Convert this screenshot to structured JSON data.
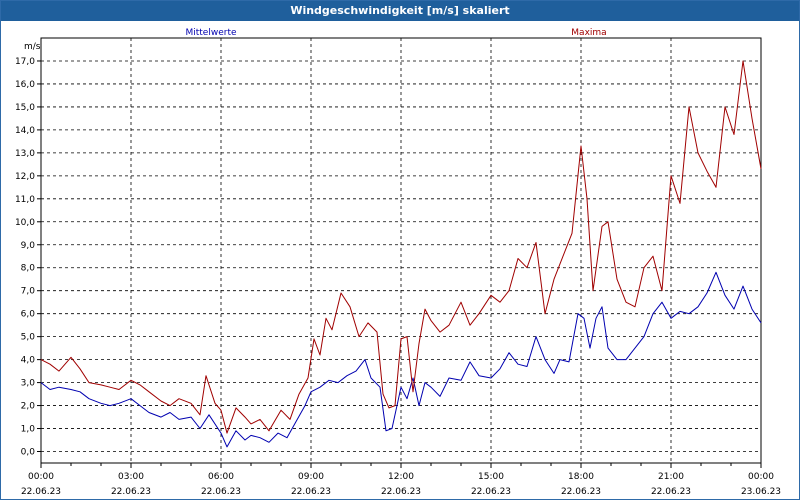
{
  "window": {
    "title": "Windgeschwindigkeit [m/s] skaliert"
  },
  "chart_data": {
    "type": "line",
    "ylabel": "m/s",
    "ylim": [
      -0.5,
      18.0
    ],
    "yticks": [
      "0,0",
      "1,0",
      "2,0",
      "3,0",
      "4,0",
      "5,0",
      "6,0",
      "7,0",
      "8,0",
      "9,0",
      "10,0",
      "11,0",
      "12,0",
      "13,0",
      "14,0",
      "15,0",
      "16,0",
      "17,0"
    ],
    "xlim": [
      0,
      24
    ],
    "xticks": [
      {
        "time": "00:00",
        "date": "22.06.23"
      },
      {
        "time": "03:00",
        "date": "22.06.23"
      },
      {
        "time": "06:00",
        "date": "22.06.23"
      },
      {
        "time": "09:00",
        "date": "22.06.23"
      },
      {
        "time": "12:00",
        "date": "22.06.23"
      },
      {
        "time": "15:00",
        "date": "22.06.23"
      },
      {
        "time": "18:00",
        "date": "22.06.23"
      },
      {
        "time": "21:00",
        "date": "22.06.23"
      },
      {
        "time": "00:00",
        "date": "23.06.23"
      }
    ],
    "grid": true,
    "series": [
      {
        "name": "Mittelwerte",
        "color": "#0000b0",
        "points": [
          [
            0.0,
            3.0
          ],
          [
            0.3,
            2.7
          ],
          [
            0.6,
            2.8
          ],
          [
            1.0,
            2.7
          ],
          [
            1.3,
            2.6
          ],
          [
            1.6,
            2.3
          ],
          [
            2.0,
            2.1
          ],
          [
            2.3,
            2.0
          ],
          [
            2.6,
            2.1
          ],
          [
            3.0,
            2.3
          ],
          [
            3.3,
            2.0
          ],
          [
            3.6,
            1.7
          ],
          [
            4.0,
            1.5
          ],
          [
            4.3,
            1.7
          ],
          [
            4.6,
            1.4
          ],
          [
            5.0,
            1.5
          ],
          [
            5.3,
            1.0
          ],
          [
            5.6,
            1.6
          ],
          [
            6.0,
            0.8
          ],
          [
            6.2,
            0.2
          ],
          [
            6.5,
            0.9
          ],
          [
            6.8,
            0.5
          ],
          [
            7.0,
            0.7
          ],
          [
            7.3,
            0.6
          ],
          [
            7.6,
            0.4
          ],
          [
            7.9,
            0.8
          ],
          [
            8.2,
            0.6
          ],
          [
            8.5,
            1.3
          ],
          [
            8.8,
            2.0
          ],
          [
            9.0,
            2.6
          ],
          [
            9.3,
            2.8
          ],
          [
            9.6,
            3.1
          ],
          [
            9.9,
            3.0
          ],
          [
            10.2,
            3.3
          ],
          [
            10.5,
            3.5
          ],
          [
            10.8,
            4.0
          ],
          [
            11.0,
            3.2
          ],
          [
            11.3,
            2.8
          ],
          [
            11.5,
            0.9
          ],
          [
            11.7,
            1.0
          ],
          [
            12.0,
            2.8
          ],
          [
            12.2,
            2.3
          ],
          [
            12.4,
            3.2
          ],
          [
            12.6,
            2.0
          ],
          [
            12.8,
            3.0
          ],
          [
            13.0,
            2.8
          ],
          [
            13.3,
            2.4
          ],
          [
            13.6,
            3.2
          ],
          [
            14.0,
            3.1
          ],
          [
            14.3,
            3.9
          ],
          [
            14.6,
            3.3
          ],
          [
            15.0,
            3.2
          ],
          [
            15.3,
            3.6
          ],
          [
            15.6,
            4.3
          ],
          [
            15.9,
            3.8
          ],
          [
            16.2,
            3.7
          ],
          [
            16.5,
            5.0
          ],
          [
            16.8,
            4.0
          ],
          [
            17.1,
            3.4
          ],
          [
            17.3,
            4.0
          ],
          [
            17.6,
            3.9
          ],
          [
            17.9,
            6.0
          ],
          [
            18.1,
            5.8
          ],
          [
            18.3,
            4.5
          ],
          [
            18.5,
            5.8
          ],
          [
            18.7,
            6.3
          ],
          [
            18.9,
            4.5
          ],
          [
            19.2,
            4.0
          ],
          [
            19.5,
            4.0
          ],
          [
            19.8,
            4.5
          ],
          [
            20.1,
            5.0
          ],
          [
            20.4,
            6.0
          ],
          [
            20.7,
            6.5
          ],
          [
            21.0,
            5.8
          ],
          [
            21.3,
            6.1
          ],
          [
            21.6,
            6.0
          ],
          [
            21.9,
            6.3
          ],
          [
            22.2,
            6.9
          ],
          [
            22.5,
            7.8
          ],
          [
            22.8,
            6.8
          ],
          [
            23.1,
            6.2
          ],
          [
            23.4,
            7.2
          ],
          [
            23.7,
            6.2
          ],
          [
            24.0,
            5.6
          ]
        ]
      },
      {
        "name": "Maxima",
        "color": "#a00000",
        "points": [
          [
            0.0,
            4.0
          ],
          [
            0.3,
            3.8
          ],
          [
            0.6,
            3.5
          ],
          [
            1.0,
            4.1
          ],
          [
            1.3,
            3.6
          ],
          [
            1.6,
            3.0
          ],
          [
            2.0,
            2.9
          ],
          [
            2.3,
            2.8
          ],
          [
            2.6,
            2.7
          ],
          [
            3.0,
            3.1
          ],
          [
            3.3,
            2.9
          ],
          [
            3.6,
            2.6
          ],
          [
            4.0,
            2.2
          ],
          [
            4.3,
            2.0
          ],
          [
            4.6,
            2.3
          ],
          [
            5.0,
            2.1
          ],
          [
            5.3,
            1.6
          ],
          [
            5.5,
            3.3
          ],
          [
            5.8,
            2.1
          ],
          [
            6.0,
            1.8
          ],
          [
            6.2,
            0.8
          ],
          [
            6.5,
            1.9
          ],
          [
            6.8,
            1.5
          ],
          [
            7.0,
            1.2
          ],
          [
            7.3,
            1.4
          ],
          [
            7.6,
            0.9
          ],
          [
            8.0,
            1.8
          ],
          [
            8.3,
            1.4
          ],
          [
            8.6,
            2.5
          ],
          [
            8.9,
            3.2
          ],
          [
            9.1,
            4.9
          ],
          [
            9.3,
            4.2
          ],
          [
            9.5,
            5.8
          ],
          [
            9.7,
            5.3
          ],
          [
            10.0,
            6.9
          ],
          [
            10.3,
            6.3
          ],
          [
            10.6,
            5.0
          ],
          [
            10.9,
            5.6
          ],
          [
            11.2,
            5.2
          ],
          [
            11.4,
            2.5
          ],
          [
            11.6,
            1.9
          ],
          [
            11.8,
            2.0
          ],
          [
            12.0,
            4.9
          ],
          [
            12.2,
            5.0
          ],
          [
            12.4,
            2.6
          ],
          [
            12.6,
            4.7
          ],
          [
            12.8,
            6.2
          ],
          [
            13.0,
            5.7
          ],
          [
            13.3,
            5.2
          ],
          [
            13.6,
            5.5
          ],
          [
            14.0,
            6.5
          ],
          [
            14.3,
            5.5
          ],
          [
            14.6,
            6.0
          ],
          [
            15.0,
            6.8
          ],
          [
            15.3,
            6.5
          ],
          [
            15.6,
            7.0
          ],
          [
            15.9,
            8.4
          ],
          [
            16.2,
            8.0
          ],
          [
            16.5,
            9.1
          ],
          [
            16.8,
            6.0
          ],
          [
            17.1,
            7.5
          ],
          [
            17.4,
            8.5
          ],
          [
            17.7,
            9.5
          ],
          [
            18.0,
            13.3
          ],
          [
            18.2,
            11.0
          ],
          [
            18.4,
            7.0
          ],
          [
            18.7,
            9.8
          ],
          [
            18.9,
            10.0
          ],
          [
            19.2,
            7.5
          ],
          [
            19.5,
            6.5
          ],
          [
            19.8,
            6.3
          ],
          [
            20.1,
            8.0
          ],
          [
            20.4,
            8.5
          ],
          [
            20.7,
            7.0
          ],
          [
            21.0,
            12.0
          ],
          [
            21.3,
            10.8
          ],
          [
            21.6,
            15.0
          ],
          [
            21.9,
            13.0
          ],
          [
            22.2,
            12.2
          ],
          [
            22.5,
            11.5
          ],
          [
            22.8,
            15.0
          ],
          [
            23.1,
            13.8
          ],
          [
            23.4,
            17.0
          ],
          [
            23.7,
            14.5
          ],
          [
            24.0,
            12.3
          ]
        ]
      }
    ]
  }
}
